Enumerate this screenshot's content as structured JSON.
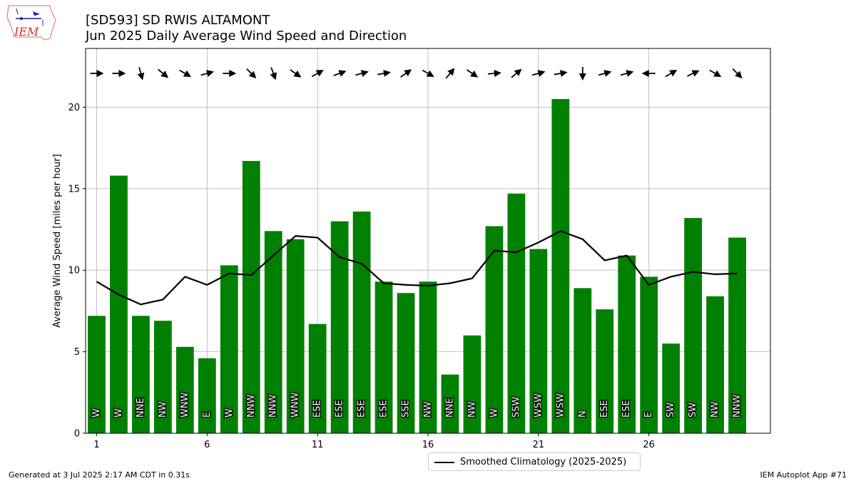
{
  "header": {
    "title_line1": "[SD593] SD RWIS ALTAMONT",
    "title_line2": "Jun 2025 Daily Average Wind Speed and Direction"
  },
  "logo": {
    "text": "IEM",
    "icon": "iem-iowa-logo"
  },
  "footer": {
    "generated": "Generated at 3 Jul 2025 2:17 AM CDT in 0.31s",
    "app": "IEM Autoplot App #71"
  },
  "legend": {
    "label": "Smoothed Climatology (2025-2025)"
  },
  "colors": {
    "bar": "#008000",
    "line": "#000000",
    "grid": "#b0b0b0"
  },
  "chart_data": {
    "type": "bar",
    "ylabel": "Average Wind Speed [miles per hour]",
    "xlabel": "",
    "xlim": [
      0.5,
      31.5
    ],
    "ylim": [
      0,
      23.6
    ],
    "xticks": [
      1,
      6,
      11,
      16,
      21,
      26
    ],
    "yticks": [
      0,
      5,
      10,
      15,
      20
    ],
    "grid": true,
    "legend_position": "below",
    "days": [
      1,
      2,
      3,
      4,
      5,
      6,
      7,
      8,
      9,
      10,
      11,
      12,
      13,
      14,
      15,
      16,
      17,
      18,
      19,
      20,
      21,
      22,
      23,
      24,
      25,
      26,
      27,
      28,
      29,
      30
    ],
    "series": [
      {
        "type": "bar",
        "values": [
          7.2,
          15.8,
          7.2,
          6.9,
          5.3,
          4.6,
          10.3,
          16.7,
          12.4,
          11.9,
          6.7,
          13.0,
          13.6,
          9.3,
          8.6,
          9.3,
          3.6,
          6.0,
          12.7,
          14.7,
          11.3,
          20.5,
          8.9,
          7.6,
          10.9,
          9.6,
          5.5,
          13.2,
          8.4,
          12.0
        ],
        "direction_labels": [
          "W",
          "W",
          "NNE",
          "NW",
          "WNW",
          "E",
          "W",
          "NNW",
          "NNW",
          "WNW",
          "ESE",
          "ESE",
          "ESE",
          "ESE",
          "SSE",
          "NW",
          "NNE",
          "NW",
          "W",
          "SSW",
          "WSW",
          "WSW",
          "N",
          "ESE",
          "ESE",
          "E",
          "SW",
          "SW",
          "NW",
          "NNW"
        ]
      },
      {
        "type": "line",
        "name": "Smoothed Climatology (2025-2025)",
        "values": [
          9.3,
          8.5,
          7.9,
          8.2,
          9.6,
          9.1,
          9.8,
          9.7,
          10.9,
          12.1,
          12.0,
          10.8,
          10.4,
          9.2,
          9.1,
          9.05,
          9.2,
          9.5,
          11.2,
          11.1,
          11.7,
          12.4,
          11.9,
          10.6,
          10.9,
          9.1,
          9.6,
          9.9,
          9.75,
          9.8
        ]
      }
    ],
    "arrow_angles_deg": [
      0,
      0,
      75,
      40,
      30,
      -15,
      0,
      45,
      70,
      35,
      -30,
      -20,
      -15,
      -10,
      -35,
      30,
      -50,
      35,
      -5,
      -40,
      -15,
      -10,
      90,
      -15,
      -15,
      180,
      -30,
      -25,
      30,
      45
    ]
  }
}
